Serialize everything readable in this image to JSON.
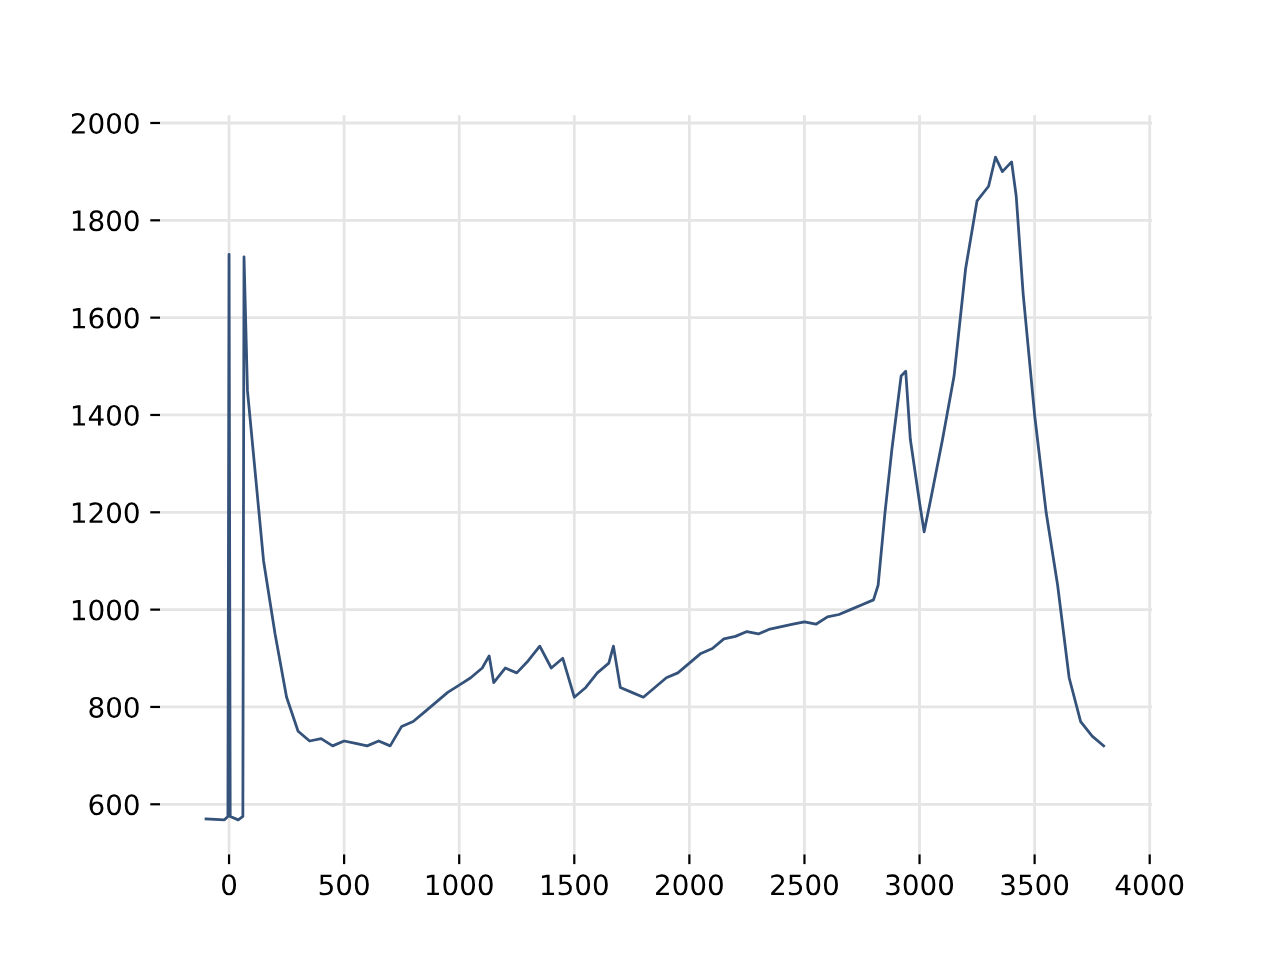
{
  "chart_data": {
    "type": "line",
    "grid": true,
    "marker": "none",
    "line_style": "solid",
    "xlim": [
      -300,
      4010
    ],
    "ylim": [
      497,
      2016
    ],
    "xticks": [
      0,
      500,
      1000,
      1500,
      2000,
      2500,
      3000,
      3500,
      4000
    ],
    "yticks": [
      600,
      800,
      1000,
      1200,
      1400,
      1600,
      1800,
      2000
    ],
    "series": [
      {
        "color": "#34527a",
        "x": [
          -100,
          -20,
          -5,
          0,
          5,
          40,
          60,
          65,
          80,
          110,
          150,
          200,
          250,
          300,
          350,
          400,
          450,
          500,
          550,
          600,
          650,
          700,
          750,
          800,
          850,
          900,
          950,
          1000,
          1050,
          1100,
          1130,
          1150,
          1200,
          1250,
          1300,
          1350,
          1400,
          1450,
          1500,
          1550,
          1600,
          1650,
          1670,
          1700,
          1750,
          1800,
          1850,
          1900,
          1950,
          2000,
          2050,
          2100,
          2150,
          2200,
          2250,
          2300,
          2350,
          2400,
          2450,
          2500,
          2550,
          2600,
          2650,
          2700,
          2750,
          2800,
          2820,
          2850,
          2880,
          2920,
          2940,
          2960,
          3000,
          3020,
          3050,
          3100,
          3150,
          3200,
          3250,
          3300,
          3330,
          3360,
          3400,
          3420,
          3450,
          3500,
          3550,
          3600,
          3650,
          3700,
          3750,
          3800
        ],
        "values": [
          570,
          568,
          575,
          1730,
          575,
          568,
          575,
          1725,
          1450,
          1300,
          1100,
          950,
          820,
          750,
          730,
          735,
          720,
          730,
          725,
          720,
          730,
          720,
          760,
          770,
          790,
          810,
          830,
          845,
          860,
          880,
          905,
          850,
          880,
          870,
          895,
          925,
          880,
          900,
          820,
          840,
          870,
          890,
          925,
          840,
          830,
          820,
          840,
          860,
          870,
          890,
          910,
          920,
          940,
          945,
          955,
          950,
          960,
          965,
          970,
          975,
          970,
          985,
          990,
          1000,
          1010,
          1020,
          1050,
          1200,
          1330,
          1480,
          1490,
          1350,
          1220,
          1160,
          1230,
          1350,
          1480,
          1700,
          1840,
          1870,
          1930,
          1900,
          1920,
          1850,
          1650,
          1400,
          1200,
          1050,
          860,
          770,
          740,
          720
        ]
      }
    ]
  }
}
